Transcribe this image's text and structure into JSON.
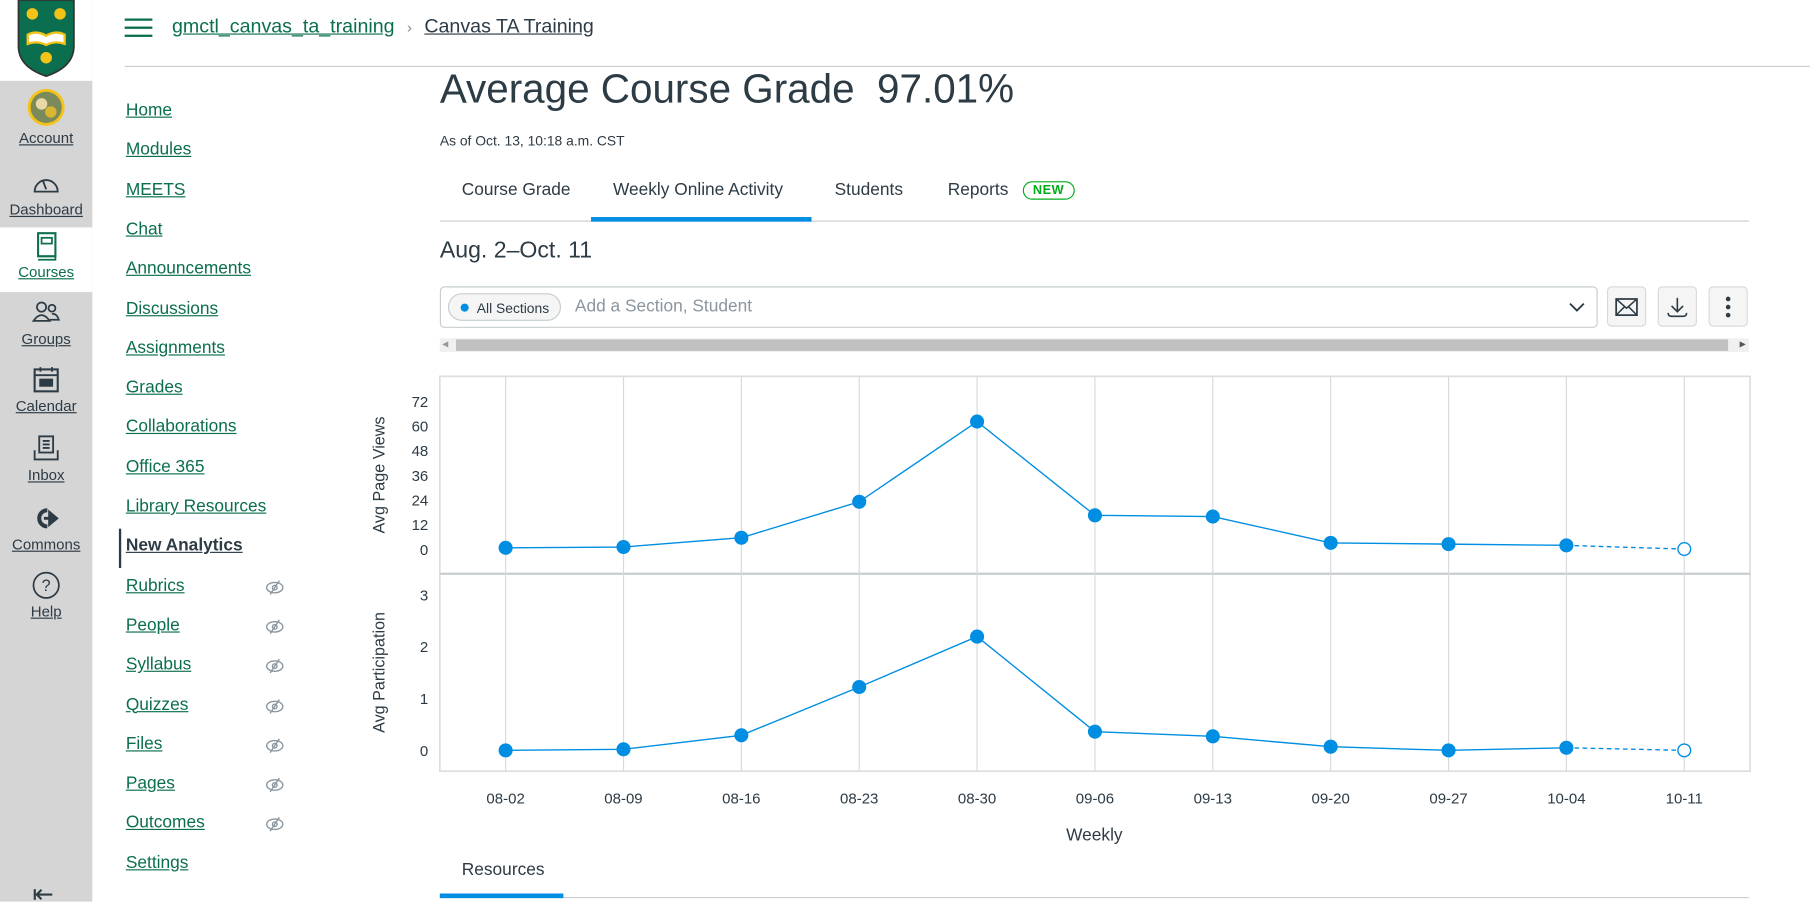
{
  "global_nav": {
    "items": [
      {
        "label": "Account",
        "icon": "avatar"
      },
      {
        "label": "Dashboard",
        "icon": "dashboard-icon"
      },
      {
        "label": "Courses",
        "icon": "courses-icon",
        "active": true
      },
      {
        "label": "Groups",
        "icon": "groups-icon"
      },
      {
        "label": "Calendar",
        "icon": "calendar-icon"
      },
      {
        "label": "Inbox",
        "icon": "inbox-icon"
      },
      {
        "label": "Commons",
        "icon": "commons-icon"
      },
      {
        "label": "Help",
        "icon": "help-icon"
      }
    ]
  },
  "breadcrumb": {
    "course_code": "gmctl_canvas_ta_training",
    "separator": "›",
    "current": "Canvas TA Training"
  },
  "course_nav": [
    {
      "label": "Home"
    },
    {
      "label": "Modules"
    },
    {
      "label": "MEETS"
    },
    {
      "label": "Chat"
    },
    {
      "label": "Announcements"
    },
    {
      "label": "Discussions"
    },
    {
      "label": "Assignments"
    },
    {
      "label": "Grades"
    },
    {
      "label": "Collaborations"
    },
    {
      "label": "Office 365"
    },
    {
      "label": "Library Resources"
    },
    {
      "label": "New Analytics",
      "active": true
    },
    {
      "label": "Rubrics",
      "hidden": true
    },
    {
      "label": "People",
      "hidden": true
    },
    {
      "label": "Syllabus",
      "hidden": true
    },
    {
      "label": "Quizzes",
      "hidden": true
    },
    {
      "label": "Files",
      "hidden": true
    },
    {
      "label": "Pages",
      "hidden": true
    },
    {
      "label": "Outcomes",
      "hidden": true
    },
    {
      "label": "Settings"
    }
  ],
  "main": {
    "title": "Average Course Grade",
    "grade": "97.01%",
    "as_of": "As of Oct. 13, 10:18 a.m. CST",
    "tabs": [
      {
        "label": "Course Grade"
      },
      {
        "label": "Weekly Online Activity",
        "active": true
      },
      {
        "label": "Students"
      },
      {
        "label": "Reports",
        "badge": "NEW"
      }
    ],
    "date_range": "Aug. 2–Oct. 11",
    "filter": {
      "chip": "All Sections",
      "placeholder": "Add a Section, Student"
    },
    "bottom_tab": "Resources"
  },
  "colors": {
    "accent": "#008ee2",
    "brand_green": "#0b6e4f",
    "badge_green": "#00ac18"
  },
  "chart_data": [
    {
      "type": "line",
      "ylabel": "Avg Page Views",
      "x": [
        "08-02",
        "08-09",
        "08-16",
        "08-23",
        "08-30",
        "09-06",
        "09-13",
        "09-20",
        "09-27",
        "10-04",
        "10-11"
      ],
      "values": [
        0.6,
        1,
        5.5,
        23,
        62,
        16.4,
        15.8,
        3,
        2.4,
        1.8,
        0
      ],
      "yticks": [
        0,
        12,
        24,
        36,
        48,
        60,
        72
      ],
      "ylim": [
        -12,
        84
      ],
      "last_point_partial": true,
      "grid": "vertical"
    },
    {
      "type": "line",
      "ylabel": "Avg Participation",
      "xlabel": "Weekly",
      "x": [
        "08-02",
        "08-09",
        "08-16",
        "08-23",
        "08-30",
        "09-06",
        "09-13",
        "09-20",
        "09-27",
        "10-04",
        "10-11"
      ],
      "values": [
        0,
        0.02,
        0.29,
        1.22,
        2.19,
        0.36,
        0.27,
        0.07,
        0,
        0.05,
        0
      ],
      "yticks": [
        0,
        1,
        2,
        3
      ],
      "ylim": [
        -0.4,
        3.4
      ],
      "last_point_partial": true,
      "grid": "vertical"
    }
  ]
}
